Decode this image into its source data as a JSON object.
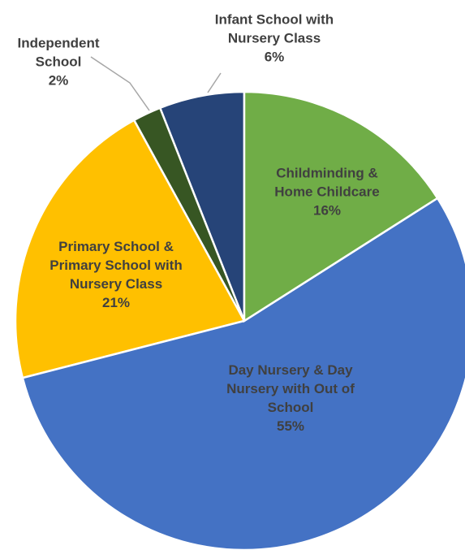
{
  "chart_data": {
    "type": "pie",
    "categories": [
      "Childminding & Home Childcare",
      "Day Nursery & Day Nursery with Out of School",
      "Primary School & Primary School with Nursery Class",
      "Independent School",
      "Infant School with Nursery Class"
    ],
    "values": [
      16,
      55,
      21,
      2,
      6
    ],
    "value_labels": [
      "16%",
      "55%",
      "21%",
      "2%",
      "6%"
    ],
    "colors": [
      "#70ad47",
      "#4472c4",
      "#ffc000",
      "#375623",
      "#264478"
    ]
  }
}
